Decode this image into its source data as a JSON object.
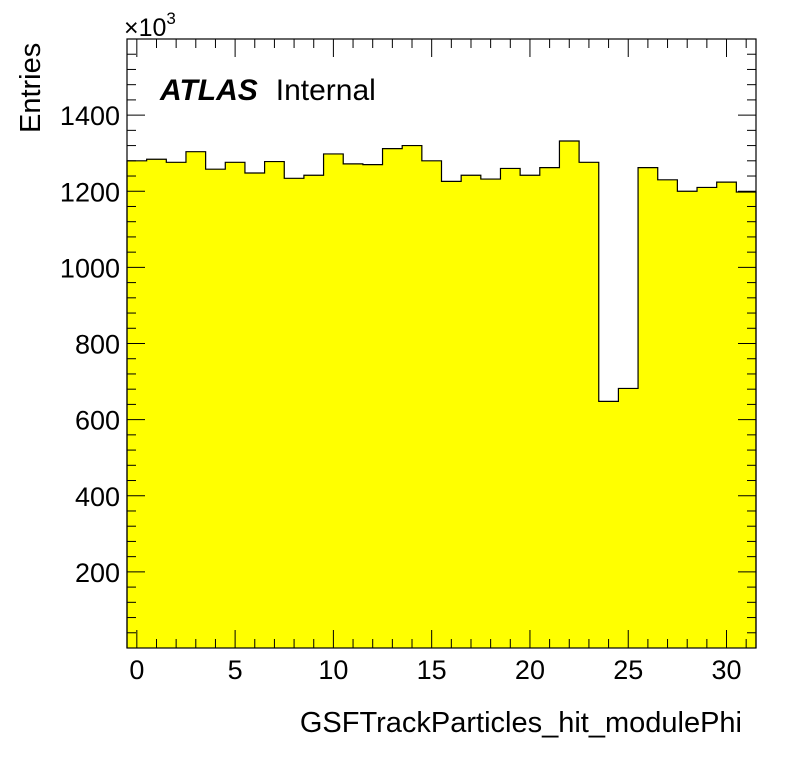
{
  "chart_data": {
    "type": "bar",
    "title": "",
    "xlabel": "GSFTrackParticles_hit_modulePhi",
    "ylabel": "Entries",
    "y_multiplier": "×10",
    "y_multiplier_exponent": "3",
    "xlim": [
      -0.5,
      31.5
    ],
    "ylim": [
      0,
      1600
    ],
    "x_ticks": [
      "0",
      "5",
      "10",
      "15",
      "20",
      "25",
      "30"
    ],
    "y_ticks": [
      "200",
      "400",
      "600",
      "800",
      "1000",
      "1200",
      "1400"
    ],
    "grid": false,
    "fill_color": "#ffff00",
    "line_color": "#000000",
    "categories": [
      0,
      1,
      2,
      3,
      4,
      5,
      6,
      7,
      8,
      9,
      10,
      11,
      12,
      13,
      14,
      15,
      16,
      17,
      18,
      19,
      20,
      21,
      22,
      23,
      24,
      25,
      26,
      27,
      28,
      29,
      30,
      31
    ],
    "values": [
      1280,
      1284,
      1276,
      1304,
      1258,
      1276,
      1248,
      1278,
      1234,
      1242,
      1298,
      1272,
      1270,
      1312,
      1320,
      1280,
      1226,
      1242,
      1232,
      1260,
      1242,
      1262,
      1332,
      1276,
      648,
      682,
      1262,
      1230,
      1200,
      1210,
      1224,
      1198
    ]
  },
  "atlas_label": {
    "bold": "ATLAS",
    "text": "Internal"
  }
}
